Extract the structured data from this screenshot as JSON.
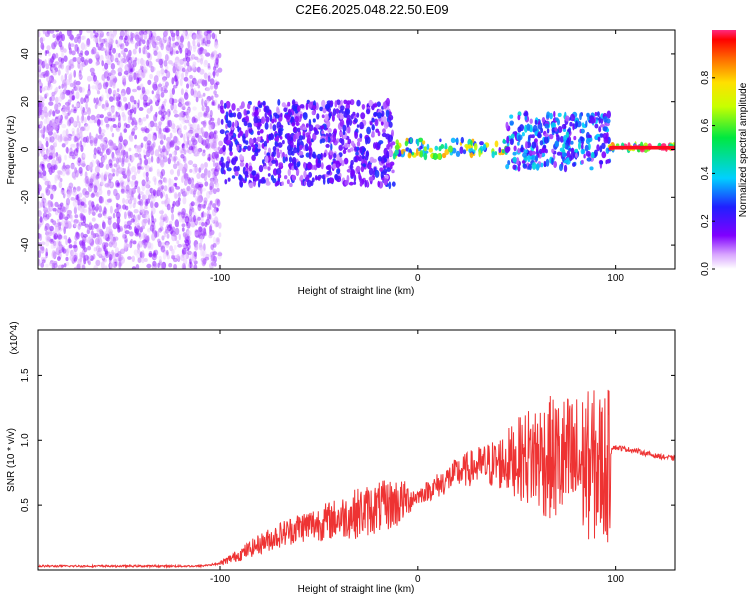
{
  "title": "C2E6.2025.048.22.50.E09",
  "colors": {
    "snr_line": "#ee3333",
    "background": "#ffffff",
    "axis": "#000000"
  },
  "chart_data": [
    {
      "type": "heatmap",
      "xlabel": "Height of straight line (km)",
      "ylabel": "Frequency (Hz)",
      "xlim": [
        -192,
        130
      ],
      "ylim": [
        -50,
        50
      ],
      "x_ticks": [
        -100,
        0,
        100
      ],
      "y_ticks": [
        -40,
        -20,
        0,
        20,
        40
      ],
      "grid": false,
      "colorbar": {
        "label": "Normalized spectral amplitude",
        "range": [
          0,
          1
        ],
        "ticks": [
          0.0,
          0.2,
          0.4,
          0.6,
          0.8
        ],
        "tick_labels": [
          "0.0",
          "0.2",
          "0.4",
          "0.6",
          "0.8"
        ],
        "colormap": "rainbow (white-violet-blue-cyan-green-yellow-red)"
      },
      "regions": [
        {
          "x_range": [
            -192,
            -100
          ],
          "freq_range": [
            -50,
            50
          ],
          "amplitude": 0.05,
          "description": "diffuse low-amplitude noise"
        },
        {
          "x_range": [
            -100,
            -12
          ],
          "freq_range": [
            -15,
            20
          ],
          "amplitude": 0.2,
          "description": "broad scattered energy"
        },
        {
          "x_range": [
            -12,
            45
          ],
          "freq_range": [
            -3,
            4
          ],
          "amplitude": 0.6,
          "description": "narrow band near 0 Hz"
        },
        {
          "x_range": [
            45,
            97
          ],
          "freq_range": [
            -8,
            15
          ],
          "amplitude": 0.3,
          "description": "scattered energy"
        },
        {
          "x_range": [
            97,
            130
          ],
          "freq_range": [
            0,
            2
          ],
          "amplitude": 0.95,
          "description": "steady narrow line near 1 Hz"
        }
      ]
    },
    {
      "type": "line",
      "xlabel": "Height of straight line (km)",
      "ylabel": "SNR (10 * v/v)",
      "y_multiplier": "(x10^4)",
      "xlim": [
        -192,
        130
      ],
      "ylim": [
        0,
        1.85
      ],
      "x_ticks": [
        -100,
        0,
        100
      ],
      "y_ticks": [
        0.5,
        1.0,
        1.5
      ],
      "y_tick_labels": [
        "0.5",
        "1.0",
        "1.5"
      ],
      "grid": false,
      "series": [
        {
          "x": [
            -192,
            -150,
            -110,
            -100,
            -90,
            -80,
            -70,
            -60,
            -50,
            -40,
            -30,
            -20,
            -10,
            0,
            10,
            20,
            30,
            40,
            50,
            60,
            70,
            80,
            90,
            97,
            98,
            110,
            120,
            130
          ],
          "y": [
            0.03,
            0.03,
            0.03,
            0.05,
            0.12,
            0.2,
            0.27,
            0.33,
            0.36,
            0.4,
            0.44,
            0.48,
            0.52,
            0.57,
            0.65,
            0.75,
            0.8,
            0.82,
            0.86,
            0.88,
            0.85,
            0.82,
            0.8,
            0.8,
            0.95,
            0.92,
            0.88,
            0.86
          ],
          "noise_amplitude": [
            0,
            0,
            0,
            0.02,
            0.05,
            0.08,
            0.1,
            0.12,
            0.14,
            0.16,
            0.2,
            0.2,
            0.2,
            0.06,
            0.1,
            0.12,
            0.15,
            0.2,
            0.3,
            0.45,
            0.5,
            0.55,
            0.6,
            0.6,
            0.02,
            0.02,
            0.02,
            0.02
          ]
        }
      ]
    }
  ]
}
